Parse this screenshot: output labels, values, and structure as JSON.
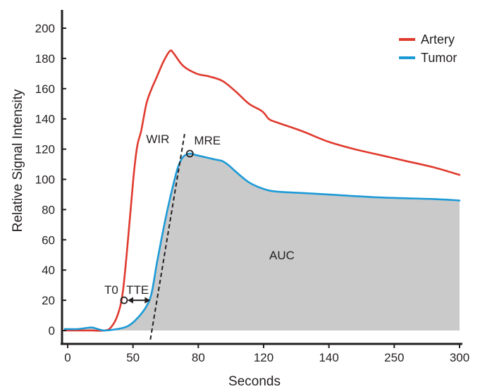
{
  "chart_data": {
    "type": "line",
    "xlabel": "Seconds",
    "ylabel": "Relative Signal Intensity",
    "ylim": [
      0,
      200
    ],
    "x_tick_labels": [
      "0",
      "50",
      "80",
      "120",
      "140",
      "250",
      "300"
    ],
    "y_ticks": [
      0,
      20,
      40,
      60,
      80,
      100,
      120,
      140,
      160,
      180,
      200
    ],
    "legend_position": "top-right",
    "series": [
      {
        "name": "Artery",
        "color": "#e03a2e",
        "points": [
          [
            0,
            0
          ],
          [
            10,
            0
          ],
          [
            20,
            0
          ],
          [
            30,
            0
          ],
          [
            35,
            2
          ],
          [
            40,
            10
          ],
          [
            44,
            25
          ],
          [
            48,
            60
          ],
          [
            52,
            100
          ],
          [
            55,
            122
          ],
          [
            58,
            132
          ],
          [
            62,
            150
          ],
          [
            66,
            160
          ],
          [
            70,
            168
          ],
          [
            75,
            178
          ],
          [
            80,
            185
          ],
          [
            83,
            183
          ],
          [
            90,
            175
          ],
          [
            100,
            170
          ],
          [
            110,
            168
          ],
          [
            120,
            165
          ],
          [
            130,
            158
          ],
          [
            140,
            150
          ],
          [
            150,
            145
          ],
          [
            155,
            140
          ],
          [
            160,
            138
          ],
          [
            180,
            132
          ],
          [
            200,
            125
          ],
          [
            220,
            120
          ],
          [
            240,
            116
          ],
          [
            260,
            112
          ],
          [
            280,
            108
          ],
          [
            300,
            103
          ]
        ]
      },
      {
        "name": "Tumor",
        "color": "#1c9ad6",
        "points": [
          [
            0,
            1
          ],
          [
            10,
            1
          ],
          [
            20,
            2
          ],
          [
            25,
            1
          ],
          [
            30,
            0
          ],
          [
            40,
            1
          ],
          [
            48,
            3
          ],
          [
            55,
            8
          ],
          [
            62,
            16
          ],
          [
            66,
            25
          ],
          [
            70,
            45
          ],
          [
            74,
            63
          ],
          [
            78,
            80
          ],
          [
            82,
            95
          ],
          [
            86,
            108
          ],
          [
            90,
            115
          ],
          [
            95,
            117
          ],
          [
            100,
            116
          ],
          [
            105,
            115
          ],
          [
            110,
            114
          ],
          [
            115,
            113
          ],
          [
            120,
            112
          ],
          [
            125,
            109
          ],
          [
            130,
            105
          ],
          [
            140,
            98
          ],
          [
            150,
            94
          ],
          [
            160,
            92
          ],
          [
            180,
            91
          ],
          [
            200,
            90
          ],
          [
            240,
            88
          ],
          [
            280,
            87
          ],
          [
            300,
            86
          ]
        ]
      }
    ],
    "auc_fill_color": "#cacaca",
    "annotations": [
      {
        "id": "t0",
        "label": "T0",
        "x": 45,
        "y": 20
      },
      {
        "id": "tte",
        "label": "TTE",
        "x_start": 45,
        "x_end": 65,
        "y": 20
      },
      {
        "id": "wir",
        "label": "WIR",
        "line_from": [
          65,
          -6
        ],
        "line_to": [
          91,
          130
        ]
      },
      {
        "id": "mre",
        "label": "MRE",
        "x": 95,
        "y": 117
      },
      {
        "id": "auc",
        "label": "AUC",
        "x": 165,
        "y": 50
      }
    ]
  }
}
